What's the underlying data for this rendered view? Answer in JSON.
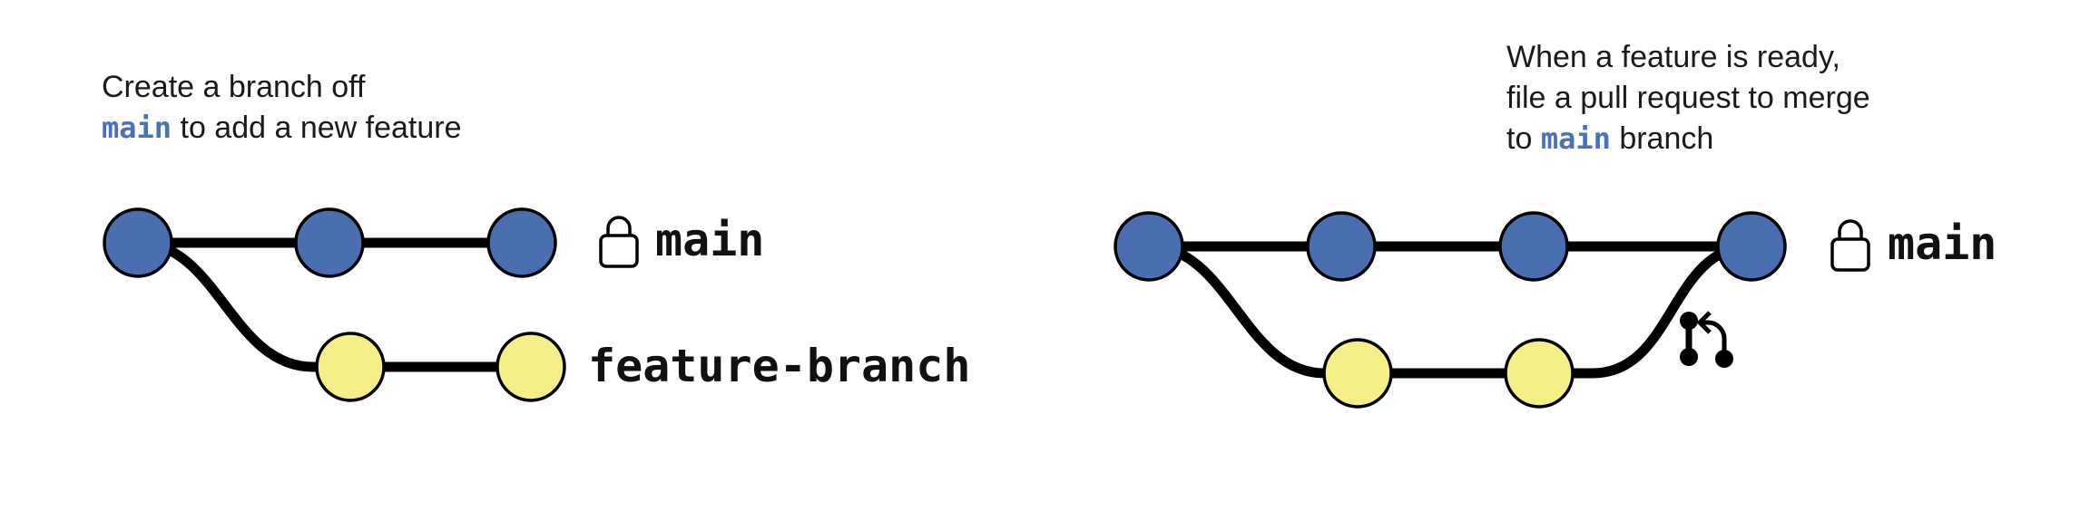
{
  "left_panel": {
    "caption": {
      "line1": "Create a branch off",
      "line2_code": "main",
      "line2_rest": " to add a new feature"
    },
    "main_label": "main",
    "feature_label": "feature-branch"
  },
  "right_panel": {
    "caption": {
      "line1": "When a feature is ready,",
      "line2": "file a pull request to merge",
      "line3_pre": "to ",
      "line3_code": "main",
      "line3_post": " branch"
    },
    "main_label": "main"
  },
  "colors": {
    "main_commit": "#4a6fb0",
    "feature_commit": "#f6ee87",
    "line": "#000000",
    "code_text": "#4a72b8"
  },
  "icons": [
    "lock-icon",
    "pull-request-icon"
  ]
}
